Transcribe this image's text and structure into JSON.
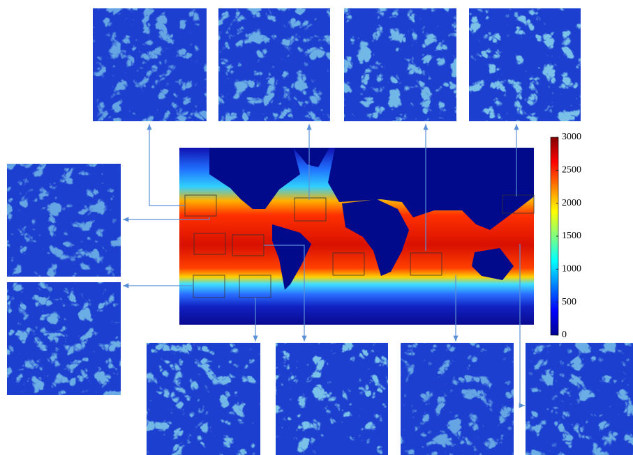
{
  "colorbar": {
    "lim": [
      0,
      3000
    ],
    "ticks": [
      0,
      500,
      1000,
      1500,
      2000,
      2500,
      3000
    ]
  }
}
